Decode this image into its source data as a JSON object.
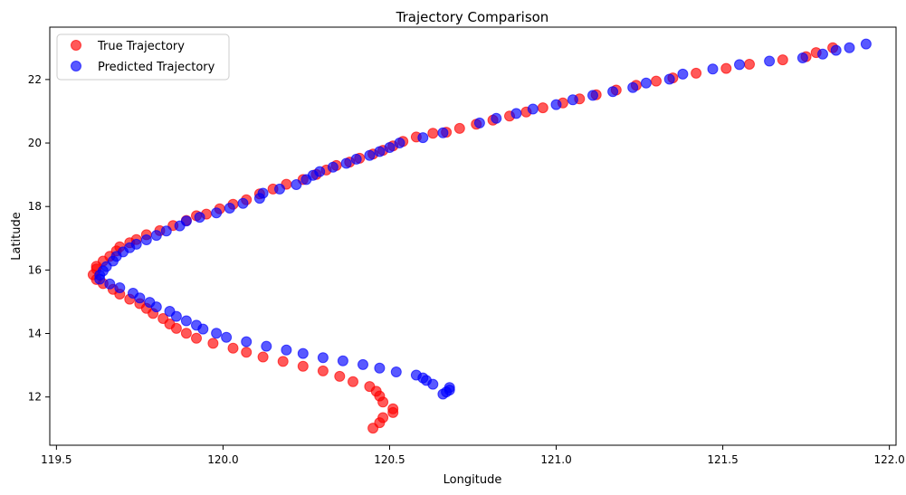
{
  "chart_data": {
    "type": "scatter",
    "title": "Trajectory Comparison",
    "xlabel": "Longitude",
    "ylabel": "Latitude",
    "xlim": [
      119.48,
      122.02
    ],
    "ylim": [
      10.48,
      23.65
    ],
    "xticks": [
      119.5,
      120.0,
      120.5,
      121.0,
      121.5,
      122.0
    ],
    "xtick_labels": [
      "119.5",
      "120.0",
      "120.5",
      "121.0",
      "121.5",
      "122.0"
    ],
    "yticks": [
      12,
      14,
      16,
      18,
      20,
      22
    ],
    "ytick_labels": [
      "12",
      "14",
      "16",
      "18",
      "20",
      "22"
    ],
    "grid": false,
    "legend_position": "upper-left",
    "series": [
      {
        "name": "True Trajectory",
        "color": "#ff0000",
        "points": [
          [
            121.83,
            23.0
          ],
          [
            121.78,
            22.85
          ],
          [
            121.75,
            22.72
          ],
          [
            121.68,
            22.62
          ],
          [
            121.58,
            22.48
          ],
          [
            121.51,
            22.35
          ],
          [
            121.42,
            22.2
          ],
          [
            121.35,
            22.05
          ],
          [
            121.3,
            21.95
          ],
          [
            121.24,
            21.82
          ],
          [
            121.18,
            21.67
          ],
          [
            121.12,
            21.52
          ],
          [
            121.07,
            21.39
          ],
          [
            121.02,
            21.26
          ],
          [
            120.96,
            21.11
          ],
          [
            120.91,
            20.98
          ],
          [
            120.86,
            20.85
          ],
          [
            120.81,
            20.72
          ],
          [
            120.76,
            20.59
          ],
          [
            120.71,
            20.46
          ],
          [
            120.67,
            20.34
          ],
          [
            120.63,
            20.31
          ],
          [
            120.58,
            20.19
          ],
          [
            120.54,
            20.05
          ],
          [
            120.51,
            19.91
          ],
          [
            120.48,
            19.77
          ],
          [
            120.45,
            19.65
          ],
          [
            120.41,
            19.52
          ],
          [
            120.38,
            19.4
          ],
          [
            120.34,
            19.29
          ],
          [
            120.31,
            19.15
          ],
          [
            120.28,
            19.01
          ],
          [
            120.24,
            18.85
          ],
          [
            120.19,
            18.7
          ],
          [
            120.15,
            18.55
          ],
          [
            120.11,
            18.4
          ],
          [
            120.07,
            18.21
          ],
          [
            120.03,
            18.07
          ],
          [
            119.99,
            17.93
          ],
          [
            119.95,
            17.76
          ],
          [
            119.92,
            17.71
          ],
          [
            119.89,
            17.56
          ],
          [
            119.85,
            17.4
          ],
          [
            119.81,
            17.24
          ],
          [
            119.77,
            17.11
          ],
          [
            119.74,
            16.96
          ],
          [
            119.72,
            16.86
          ],
          [
            119.69,
            16.73
          ],
          [
            119.68,
            16.6
          ],
          [
            119.66,
            16.43
          ],
          [
            119.64,
            16.28
          ],
          [
            119.62,
            16.12
          ],
          [
            119.62,
            16.03
          ],
          [
            119.61,
            15.85
          ],
          [
            119.62,
            15.7
          ],
          [
            119.64,
            15.57
          ],
          [
            119.67,
            15.39
          ],
          [
            119.69,
            15.24
          ],
          [
            119.72,
            15.08
          ],
          [
            119.75,
            14.94
          ],
          [
            119.77,
            14.79
          ],
          [
            119.79,
            14.63
          ],
          [
            119.82,
            14.47
          ],
          [
            119.84,
            14.3
          ],
          [
            119.86,
            14.16
          ],
          [
            119.89,
            14.01
          ],
          [
            119.92,
            13.85
          ],
          [
            119.97,
            13.69
          ],
          [
            120.03,
            13.54
          ],
          [
            120.07,
            13.41
          ],
          [
            120.12,
            13.26
          ],
          [
            120.18,
            13.12
          ],
          [
            120.24,
            12.97
          ],
          [
            120.3,
            12.82
          ],
          [
            120.35,
            12.65
          ],
          [
            120.39,
            12.48
          ],
          [
            120.44,
            12.33
          ],
          [
            120.46,
            12.18
          ],
          [
            120.47,
            12.03
          ],
          [
            120.48,
            11.84
          ],
          [
            120.51,
            11.51
          ],
          [
            120.51,
            11.63
          ],
          [
            120.48,
            11.35
          ],
          [
            120.47,
            11.19
          ],
          [
            120.45,
            11.02
          ]
        ]
      },
      {
        "name": "Predicted Trajectory",
        "color": "#0000ff",
        "points": [
          [
            121.93,
            23.12
          ],
          [
            121.88,
            23.0
          ],
          [
            121.84,
            22.92
          ],
          [
            121.8,
            22.8
          ],
          [
            121.74,
            22.68
          ],
          [
            121.64,
            22.58
          ],
          [
            121.55,
            22.47
          ],
          [
            121.47,
            22.33
          ],
          [
            121.38,
            22.17
          ],
          [
            121.34,
            22.01
          ],
          [
            121.27,
            21.89
          ],
          [
            121.23,
            21.75
          ],
          [
            121.17,
            21.62
          ],
          [
            121.11,
            21.5
          ],
          [
            121.05,
            21.36
          ],
          [
            121.0,
            21.21
          ],
          [
            120.93,
            21.07
          ],
          [
            120.88,
            20.93
          ],
          [
            120.82,
            20.78
          ],
          [
            120.77,
            20.63
          ],
          [
            120.66,
            20.32
          ],
          [
            120.6,
            20.17
          ],
          [
            120.53,
            20.0
          ],
          [
            120.5,
            19.86
          ],
          [
            120.47,
            19.73
          ],
          [
            120.44,
            19.61
          ],
          [
            120.4,
            19.49
          ],
          [
            120.37,
            19.36
          ],
          [
            120.33,
            19.24
          ],
          [
            120.29,
            19.1
          ],
          [
            120.27,
            18.98
          ],
          [
            120.25,
            18.85
          ],
          [
            120.22,
            18.69
          ],
          [
            120.17,
            18.55
          ],
          [
            120.12,
            18.42
          ],
          [
            120.11,
            18.26
          ],
          [
            120.06,
            18.1
          ],
          [
            120.02,
            17.95
          ],
          [
            119.98,
            17.8
          ],
          [
            119.93,
            17.66
          ],
          [
            119.89,
            17.54
          ],
          [
            119.87,
            17.39
          ],
          [
            119.83,
            17.23
          ],
          [
            119.8,
            17.09
          ],
          [
            119.77,
            16.95
          ],
          [
            119.74,
            16.81
          ],
          [
            119.72,
            16.7
          ],
          [
            119.7,
            16.57
          ],
          [
            119.68,
            16.43
          ],
          [
            119.67,
            16.28
          ],
          [
            119.65,
            16.11
          ],
          [
            119.64,
            15.97
          ],
          [
            119.63,
            15.84
          ],
          [
            119.63,
            15.71
          ],
          [
            119.66,
            15.56
          ],
          [
            119.69,
            15.44
          ],
          [
            119.73,
            15.27
          ],
          [
            119.75,
            15.12
          ],
          [
            119.78,
            14.98
          ],
          [
            119.8,
            14.84
          ],
          [
            119.84,
            14.7
          ],
          [
            119.86,
            14.54
          ],
          [
            119.89,
            14.4
          ],
          [
            119.92,
            14.26
          ],
          [
            119.94,
            14.14
          ],
          [
            119.98,
            14.01
          ],
          [
            120.01,
            13.88
          ],
          [
            120.07,
            13.74
          ],
          [
            120.13,
            13.6
          ],
          [
            120.19,
            13.48
          ],
          [
            120.24,
            13.37
          ],
          [
            120.3,
            13.24
          ],
          [
            120.36,
            13.14
          ],
          [
            120.42,
            13.02
          ],
          [
            120.47,
            12.91
          ],
          [
            120.52,
            12.79
          ],
          [
            120.58,
            12.69
          ],
          [
            120.6,
            12.6
          ],
          [
            120.61,
            12.52
          ],
          [
            120.63,
            12.4
          ],
          [
            120.68,
            12.3
          ],
          [
            120.68,
            12.22
          ],
          [
            120.67,
            12.16
          ],
          [
            120.66,
            12.09
          ]
        ]
      }
    ]
  }
}
